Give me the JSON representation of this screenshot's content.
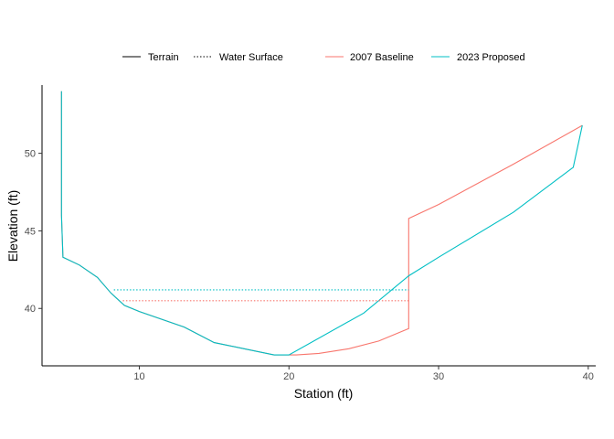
{
  "chart_data": {
    "type": "line",
    "xlabel": "Station (ft)",
    "ylabel": "Elevation (ft)",
    "xlim": [
      3.5,
      40.5
    ],
    "ylim": [
      36.3,
      54.4
    ],
    "x_ticks": [
      10,
      20,
      30,
      40
    ],
    "y_ticks": [
      40,
      45,
      50
    ],
    "grid": false,
    "legend_position": "top",
    "legend": {
      "linetype": [
        {
          "label": "Terrain",
          "style": "solid"
        },
        {
          "label": "Water Surface",
          "style": "dotted"
        }
      ],
      "color": [
        {
          "label": "2007 Baseline",
          "color": "#F8766D"
        },
        {
          "label": "2023 Proposed",
          "color": "#00BFC4"
        }
      ]
    },
    "series": [
      {
        "name": "2007 Baseline",
        "kind": "Terrain",
        "color": "#F8766D",
        "points": [
          [
            4.8,
            54.0
          ],
          [
            4.8,
            46.0
          ],
          [
            4.9,
            43.3
          ],
          [
            6.0,
            42.8
          ],
          [
            7.2,
            42.0
          ],
          [
            8.1,
            41.0
          ],
          [
            9.0,
            40.2
          ],
          [
            10.0,
            39.8
          ],
          [
            13.0,
            38.8
          ],
          [
            15.0,
            37.8
          ],
          [
            17.0,
            37.4
          ],
          [
            19.0,
            37.0
          ],
          [
            20.5,
            37.0
          ],
          [
            22.0,
            37.1
          ],
          [
            24.0,
            37.4
          ],
          [
            26.0,
            37.9
          ],
          [
            28.0,
            38.7
          ],
          [
            28.0,
            45.8
          ],
          [
            30.0,
            46.7
          ],
          [
            35.0,
            49.3
          ],
          [
            39.6,
            51.8
          ]
        ]
      },
      {
        "name": "2023 Proposed",
        "kind": "Terrain",
        "color": "#00BFC4",
        "points": [
          [
            4.8,
            54.0
          ],
          [
            4.8,
            46.0
          ],
          [
            4.9,
            43.3
          ],
          [
            6.0,
            42.8
          ],
          [
            7.2,
            42.0
          ],
          [
            8.1,
            41.0
          ],
          [
            9.0,
            40.2
          ],
          [
            10.0,
            39.8
          ],
          [
            13.0,
            38.8
          ],
          [
            15.0,
            37.8
          ],
          [
            17.0,
            37.4
          ],
          [
            19.0,
            37.0
          ],
          [
            20.0,
            37.0
          ],
          [
            25.0,
            39.7
          ],
          [
            28.0,
            42.1
          ],
          [
            30.0,
            43.3
          ],
          [
            35.0,
            46.2
          ],
          [
            39.0,
            49.1
          ],
          [
            39.6,
            51.8
          ]
        ]
      },
      {
        "name": "2007 Baseline",
        "kind": "Water Surface",
        "color": "#F8766D",
        "points": [
          [
            8.9,
            40.5
          ],
          [
            28.0,
            40.5
          ]
        ]
      },
      {
        "name": "2023 Proposed",
        "kind": "Water Surface",
        "color": "#00BFC4",
        "points": [
          [
            8.3,
            41.2
          ],
          [
            28.0,
            41.2
          ]
        ]
      }
    ]
  }
}
